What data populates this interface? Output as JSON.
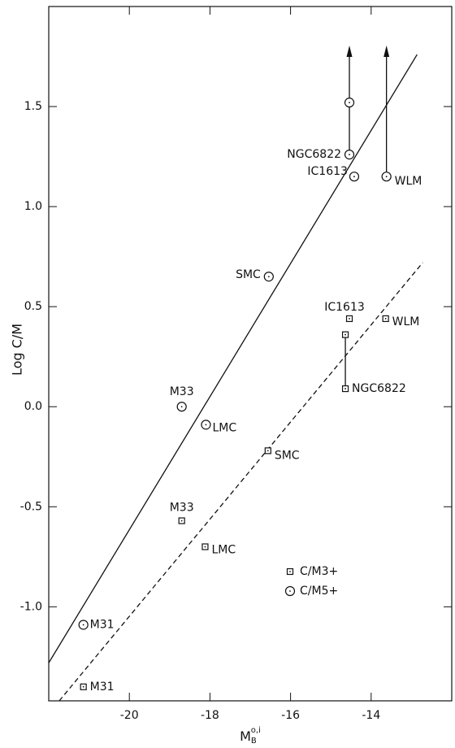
{
  "chart_data": {
    "type": "scatter",
    "ylabel": "Log C/M",
    "xlabel": {
      "base": "M",
      "sub": "B",
      "sup": "o,i"
    },
    "xlim": [
      -22,
      -12
    ],
    "ylim": [
      -1.47,
      2.0
    ],
    "xticks": [
      -20,
      -18,
      -16,
      -14
    ],
    "yticks": [
      1.5,
      {
        "value": 1.0,
        "label": "1.0"
      },
      0.5,
      {
        "value": 0.0,
        "label": "0.0"
      },
      -0.5,
      {
        "value": -1.0,
        "label": "-1.0"
      }
    ],
    "legend": "lower right",
    "series": [
      {
        "name": "C/M3+",
        "marker": "square",
        "color": "#111111",
        "labels": [
          "M31",
          "M33",
          "LMC",
          "SMC",
          "IC1613",
          "WLM",
          "NGC6822",
          null
        ],
        "x": [
          -21.14,
          -18.7,
          -18.12,
          -16.56,
          -14.54,
          -13.64,
          -14.64,
          -14.64
        ],
        "values": [
          -1.4,
          -0.57,
          -0.7,
          -0.22,
          0.44,
          0.44,
          0.09,
          0.36
        ],
        "lower_limit": [
          false,
          false,
          false,
          false,
          false,
          false,
          false,
          false
        ]
      },
      {
        "name": "C/M5+",
        "marker": "circle",
        "color": "#111111",
        "labels": [
          "M31",
          "M33",
          "LMC",
          "SMC",
          "NGC6822",
          null,
          "IC1613",
          "WLM"
        ],
        "x": [
          -21.14,
          -18.7,
          -18.1,
          -16.54,
          -14.54,
          -14.54,
          -14.42,
          -13.62
        ],
        "values": [
          -1.09,
          0.0,
          -0.09,
          0.65,
          1.26,
          1.52,
          1.15,
          1.15
        ],
        "lower_limit": [
          false,
          false,
          false,
          false,
          false,
          true,
          false,
          true
        ]
      }
    ],
    "fit_lines": [
      {
        "style": "solid",
        "color": "#111111",
        "x": [
          -22,
          -12.86
        ],
        "values": [
          -1.28,
          1.76
        ]
      },
      {
        "style": "dashed",
        "color": "#111111",
        "x": [
          -21.74,
          -12.72
        ],
        "values": [
          -1.47,
          0.72
        ]
      }
    ]
  }
}
